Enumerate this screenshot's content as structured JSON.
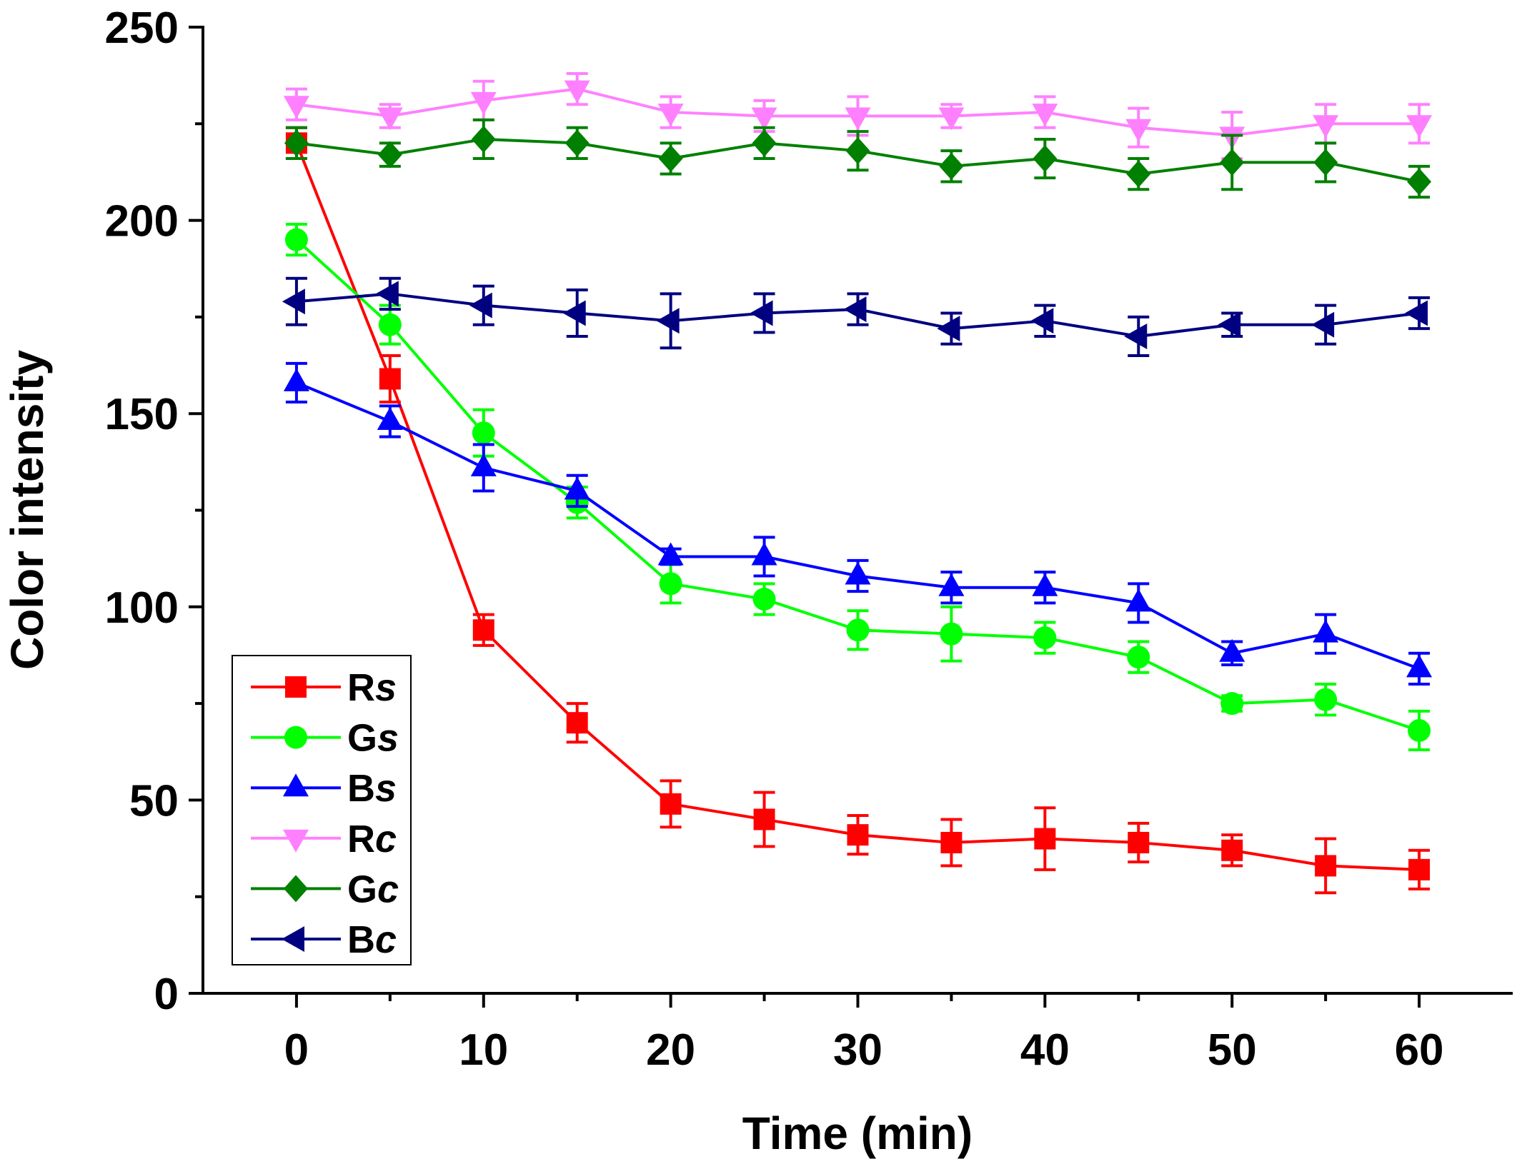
{
  "chart_data": {
    "type": "line",
    "title": "",
    "xlabel": "Time (min)",
    "ylabel": "Color intensity",
    "xlim": [
      -5,
      65
    ],
    "ylim": [
      0,
      250
    ],
    "xticks": [
      0,
      10,
      20,
      30,
      40,
      50,
      60
    ],
    "yticks": [
      0,
      50,
      100,
      150,
      200,
      250
    ],
    "grid": false,
    "legend_position": "lower-left",
    "x": [
      0,
      5,
      10,
      15,
      20,
      25,
      30,
      35,
      40,
      45,
      50,
      55,
      60
    ],
    "series": [
      {
        "name": "Rs",
        "color": "#FF0000",
        "marker": "square",
        "values": [
          220,
          159,
          94,
          70,
          49,
          45,
          41,
          39,
          40,
          39,
          37,
          33,
          32
        ],
        "errors": [
          4,
          6,
          4,
          5,
          6,
          7,
          5,
          6,
          8,
          5,
          4,
          7,
          5
        ]
      },
      {
        "name": "Gs",
        "color": "#00FF00",
        "marker": "circle",
        "values": [
          195,
          173,
          145,
          127,
          106,
          102,
          94,
          93,
          92,
          87,
          75,
          76,
          68
        ],
        "errors": [
          4,
          5,
          6,
          4,
          5,
          4,
          5,
          7,
          4,
          4,
          2,
          4,
          5
        ]
      },
      {
        "name": "Bs",
        "color": "#0000FF",
        "marker": "triangle-up",
        "values": [
          158,
          148,
          136,
          130,
          113,
          113,
          108,
          105,
          105,
          101,
          88,
          93,
          84
        ],
        "errors": [
          5,
          4,
          6,
          4,
          2,
          5,
          4,
          4,
          4,
          5,
          3,
          5,
          4
        ]
      },
      {
        "name": "Rc",
        "color": "#FF80FF",
        "marker": "triangle-down",
        "values": [
          230,
          227,
          231,
          234,
          228,
          227,
          227,
          227,
          228,
          224,
          222,
          225,
          225
        ],
        "errors": [
          4,
          3,
          5,
          4,
          4,
          4,
          5,
          3,
          4,
          5,
          6,
          5,
          5
        ]
      },
      {
        "name": "Gc",
        "color": "#008000",
        "marker": "diamond",
        "values": [
          220,
          217,
          221,
          220,
          216,
          220,
          218,
          214,
          216,
          212,
          215,
          215,
          210
        ],
        "errors": [
          4,
          3,
          5,
          4,
          4,
          4,
          5,
          4,
          5,
          4,
          7,
          5,
          4
        ]
      },
      {
        "name": "Bc",
        "color": "#000080",
        "marker": "triangle-left",
        "values": [
          179,
          181,
          178,
          176,
          174,
          176,
          177,
          172,
          174,
          170,
          173,
          173,
          176
        ],
        "errors": [
          6,
          4,
          5,
          6,
          7,
          5,
          4,
          4,
          4,
          5,
          3,
          5,
          4
        ]
      }
    ]
  }
}
